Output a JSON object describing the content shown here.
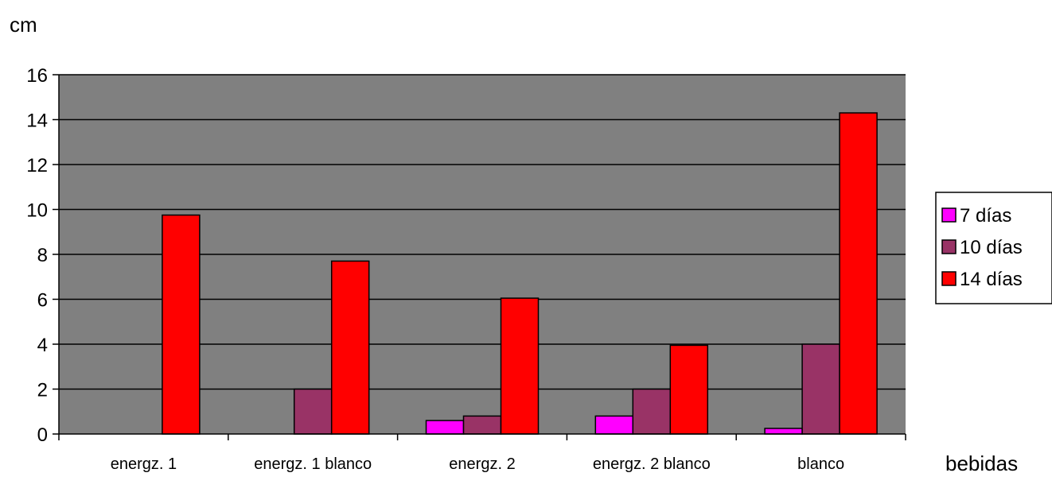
{
  "chart_data": {
    "type": "bar",
    "title": "",
    "ylabel": "cm",
    "xlabel": "bebidas",
    "categories": [
      "energz. 1",
      "energz. 1 blanco",
      "energz. 2",
      "energz. 2 blanco",
      "blanco"
    ],
    "series": [
      {
        "name": "7 días",
        "color": "#ff00ff",
        "values": [
          0,
          0,
          0.6,
          0.8,
          0.25
        ]
      },
      {
        "name": "10 días",
        "color": "#993366",
        "values": [
          0,
          2.0,
          0.8,
          2.0,
          4.0
        ]
      },
      {
        "name": "14 días",
        "color": "#ff0000",
        "values": [
          9.75,
          7.7,
          6.05,
          3.95,
          14.3
        ]
      }
    ],
    "ylim": [
      0,
      16
    ],
    "yticks": [
      0,
      2,
      4,
      6,
      8,
      10,
      12,
      14,
      16
    ],
    "grid": true,
    "legend_position": "right",
    "plot_background": "#808080"
  }
}
